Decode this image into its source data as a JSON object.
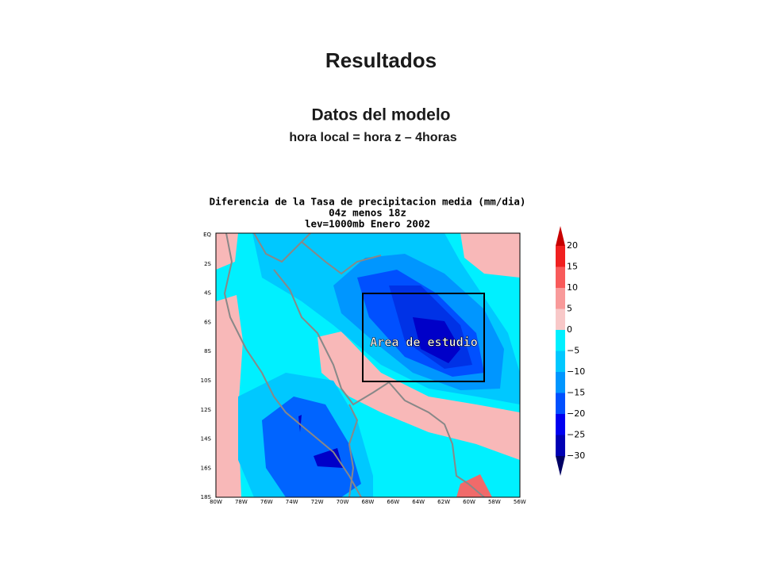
{
  "slide": {
    "title": "Resultados",
    "subtitle": "Datos del modelo",
    "note": "hora local = hora z – 4horas"
  },
  "map": {
    "title_lines": [
      "Diferencia de la Tasa de precipitacion media (mm/dia)",
      "04z menos 18z",
      "lev=1000mb Enero 2002"
    ],
    "lat_labels": [
      "EQ",
      "2S",
      "4S",
      "6S",
      "8S",
      "10S",
      "12S",
      "14S",
      "16S",
      "18S"
    ],
    "lon_labels": [
      "80W",
      "78W",
      "76W",
      "74W",
      "72W",
      "70W",
      "68W",
      "66W",
      "64W",
      "62W",
      "60W",
      "58W",
      "56W"
    ],
    "annotation": "Area de estudio",
    "colorbar_labels": [
      "20",
      "15",
      "10",
      "5",
      "0",
      "−5",
      "−10",
      "−15",
      "−20",
      "−25",
      "−30"
    ]
  }
}
